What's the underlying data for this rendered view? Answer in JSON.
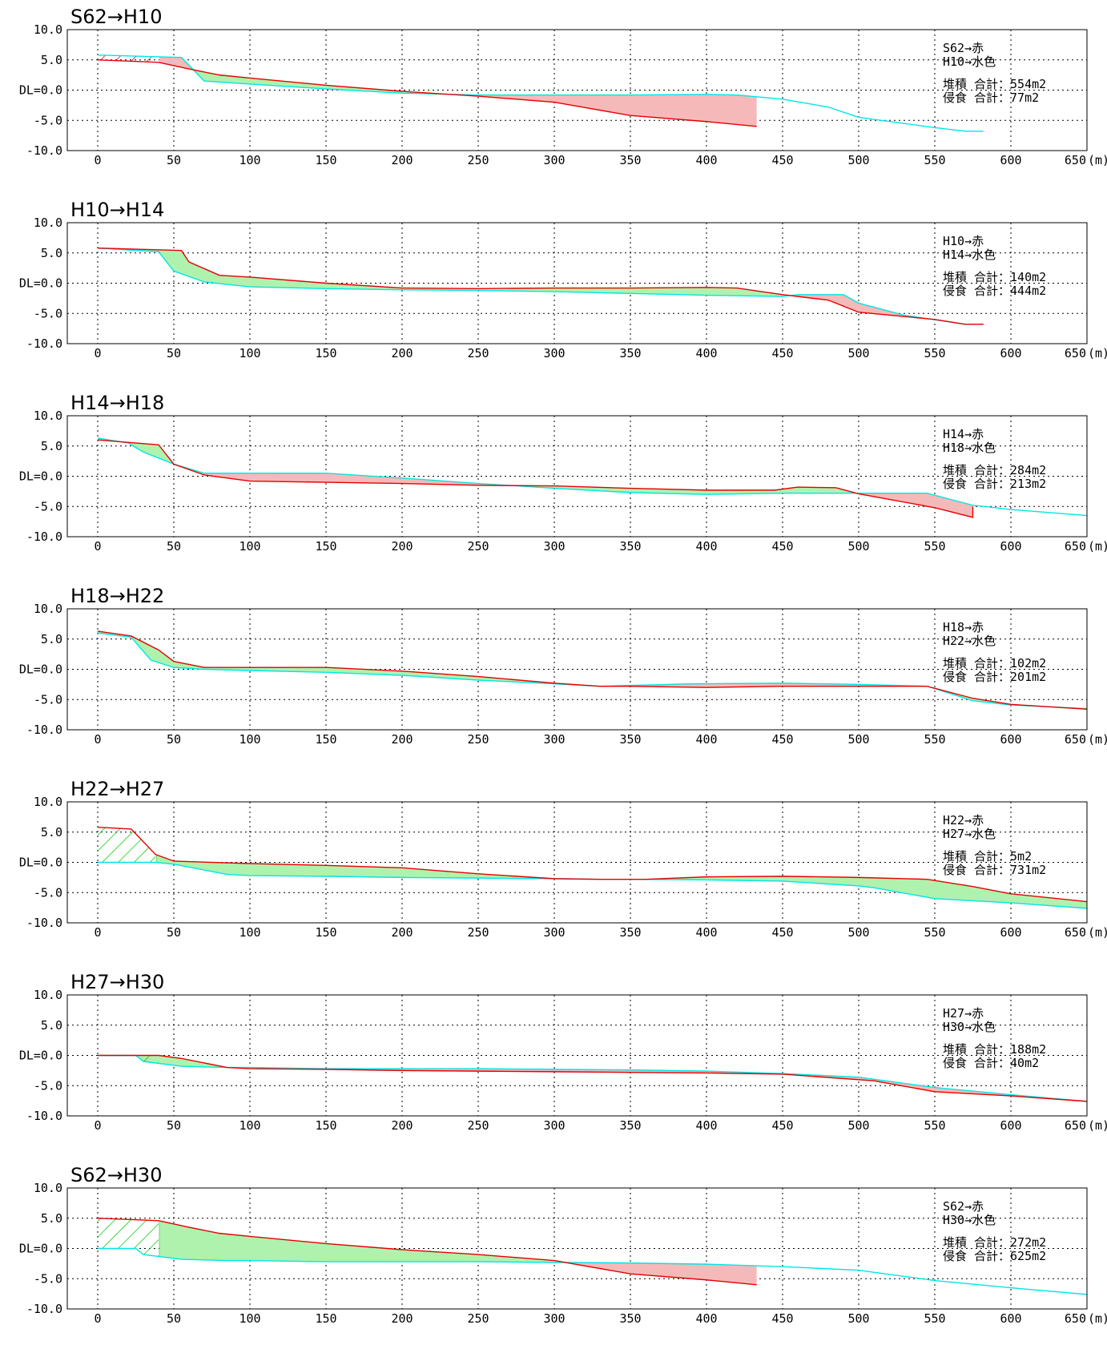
{
  "colors": {
    "old_line": "#e60000",
    "new_line": "#00e6e6",
    "deposition_fill": "#aef2ae",
    "erosion_fill": "#f6b9b9",
    "hatch": "#00cc00",
    "hatch_red": "#e60000",
    "deposition_edge": "#4caf50"
  },
  "axis_labels": {
    "x_unit": "(m)",
    "y_ticks": [
      "10.0",
      "5.0",
      "DL=0.0",
      "-5.0",
      "-10.0"
    ],
    "x_ticks": [
      "0",
      "50",
      "100",
      "150",
      "200",
      "250",
      "300",
      "350",
      "400",
      "450",
      "500",
      "550",
      "600",
      "650"
    ]
  },
  "chart_data": [
    {
      "type": "area",
      "title": "S62→H10",
      "xlim": [
        -20,
        650
      ],
      "ylim": [
        -10,
        10
      ],
      "grid": true,
      "legend_position": "top-right",
      "legend": [
        "S62→赤",
        "H10→水色"
      ],
      "deposition_label": "堆積 合計：554m2",
      "erosion_label": "侵食 合計：77m2",
      "hatch_red": [
        0,
        40
      ],
      "series": [
        {
          "name": "S62",
          "color": "red",
          "x": [
            0,
            40,
            60,
            80,
            100,
            150,
            200,
            250,
            300,
            350,
            400,
            433,
            433
          ],
          "y": [
            5.0,
            4.6,
            3.5,
            2.5,
            2.0,
            0.8,
            -0.2,
            -1.0,
            -2.0,
            -4.2,
            -5.2,
            -6.0,
            -6.0
          ]
        },
        {
          "name": "H10",
          "color": "cyan",
          "x": [
            0,
            40,
            55,
            70,
            100,
            150,
            200,
            250,
            300,
            350,
            400,
            420,
            450,
            480,
            500,
            550,
            570,
            582
          ],
          "y": [
            5.8,
            5.5,
            5.4,
            1.5,
            1.0,
            0.2,
            -0.5,
            -0.8,
            -0.8,
            -0.8,
            -0.7,
            -0.8,
            -1.5,
            -2.8,
            -4.5,
            -6.2,
            -6.8,
            -6.8
          ]
        }
      ]
    },
    {
      "type": "area",
      "title": "H10→H14",
      "xlim": [
        -20,
        650
      ],
      "ylim": [
        -10,
        10
      ],
      "grid": true,
      "legend_position": "top-right",
      "legend": [
        "H10→赤",
        "H14→水色"
      ],
      "deposition_label": "堆積 合計：140m2",
      "erosion_label": "侵食 合計：444m2",
      "series": [
        {
          "name": "H10",
          "color": "red",
          "x": [
            0,
            55,
            60,
            80,
            100,
            150,
            200,
            250,
            300,
            350,
            400,
            420,
            450,
            480,
            500,
            550,
            570,
            582
          ],
          "y": [
            5.8,
            5.4,
            3.5,
            1.3,
            1.0,
            0.0,
            -0.8,
            -0.9,
            -0.8,
            -0.8,
            -0.7,
            -0.8,
            -1.9,
            -2.8,
            -4.8,
            -6.0,
            -6.8,
            -6.8
          ]
        },
        {
          "name": "H14",
          "color": "cyan",
          "x": [
            0,
            40,
            50,
            70,
            100,
            150,
            200,
            250,
            300,
            350,
            400,
            450,
            460,
            490,
            500,
            530,
            570,
            582
          ],
          "y": [
            5.8,
            5.2,
            2.0,
            0.2,
            -0.6,
            -0.9,
            -1.1,
            -1.2,
            -1.4,
            -1.7,
            -2.0,
            -2.2,
            -1.9,
            -1.9,
            -3.3,
            -5.3,
            -6.8,
            -6.8
          ]
        }
      ]
    },
    {
      "type": "area",
      "title": "H14→H18",
      "xlim": [
        -20,
        650
      ],
      "ylim": [
        -10,
        10
      ],
      "grid": true,
      "legend_position": "top-right",
      "legend": [
        "H14→赤",
        "H18→水色"
      ],
      "deposition_label": "堆積 合計：284m2",
      "erosion_label": "侵食 合計：213m2",
      "series": [
        {
          "name": "H14",
          "color": "red",
          "x": [
            0,
            40,
            50,
            70,
            100,
            150,
            200,
            250,
            300,
            350,
            400,
            445,
            460,
            485,
            500,
            550,
            575,
            575
          ],
          "y": [
            6.0,
            5.2,
            2.0,
            0.2,
            -0.8,
            -1.0,
            -1.2,
            -1.5,
            -1.6,
            -2.0,
            -2.3,
            -2.3,
            -1.8,
            -1.9,
            -2.9,
            -5.2,
            -6.8,
            -5.0
          ]
        },
        {
          "name": "H18",
          "color": "cyan",
          "x": [
            0,
            20,
            30,
            50,
            70,
            100,
            150,
            200,
            250,
            300,
            350,
            400,
            450,
            500,
            545,
            575,
            600,
            650
          ],
          "y": [
            6.3,
            5.5,
            4.0,
            2.0,
            0.5,
            0.5,
            0.5,
            -0.3,
            -1.2,
            -2.0,
            -2.7,
            -3.0,
            -2.8,
            -2.8,
            -2.8,
            -4.8,
            -5.5,
            -6.5
          ]
        }
      ]
    },
    {
      "type": "area",
      "title": "H18→H22",
      "xlim": [
        -20,
        650
      ],
      "ylim": [
        -10,
        10
      ],
      "grid": true,
      "legend_position": "top-right",
      "legend": [
        "H18→赤",
        "H22→水色"
      ],
      "deposition_label": "堆積 合計：102m2",
      "erosion_label": "侵食 合計：201m2",
      "series": [
        {
          "name": "H18",
          "color": "red",
          "x": [
            0,
            22,
            40,
            50,
            70,
            100,
            150,
            200,
            250,
            300,
            330,
            350,
            400,
            450,
            500,
            545,
            575,
            600,
            650
          ],
          "y": [
            6.3,
            5.5,
            3.2,
            1.3,
            0.3,
            0.3,
            0.3,
            -0.3,
            -1.2,
            -2.3,
            -2.8,
            -2.8,
            -3.0,
            -2.8,
            -2.8,
            -2.8,
            -4.8,
            -5.8,
            -6.6
          ]
        },
        {
          "name": "H22",
          "color": "cyan",
          "x": [
            0,
            22,
            35,
            50,
            70,
            100,
            150,
            200,
            250,
            300,
            330,
            390,
            450,
            500,
            545,
            575,
            600,
            650
          ],
          "y": [
            6.0,
            5.3,
            1.5,
            0.3,
            0.0,
            -0.2,
            -0.5,
            -1.0,
            -1.8,
            -2.4,
            -2.8,
            -2.4,
            -2.3,
            -2.5,
            -2.8,
            -5.2,
            -5.9,
            -6.5
          ]
        }
      ]
    },
    {
      "type": "area",
      "title": "H22→H27",
      "xlim": [
        -20,
        650
      ],
      "ylim": [
        -10,
        10
      ],
      "grid": true,
      "legend_position": "top-right",
      "legend": [
        "H22→赤",
        "H27→水色"
      ],
      "deposition_label": "堆積 合計：5m2",
      "erosion_label": "侵食 合計：731m2",
      "hatch_green": [
        0,
        38
      ],
      "series": [
        {
          "name": "H22",
          "color": "red",
          "x": [
            0,
            22,
            38,
            50,
            100,
            150,
            200,
            250,
            300,
            330,
            360,
            400,
            450,
            500,
            545,
            575,
            600,
            650
          ],
          "y": [
            5.8,
            5.5,
            1.3,
            0.2,
            -0.2,
            -0.5,
            -0.9,
            -1.9,
            -2.7,
            -2.8,
            -2.8,
            -2.4,
            -2.3,
            -2.5,
            -2.8,
            -4.0,
            -5.2,
            -6.5
          ]
        },
        {
          "name": "H27",
          "color": "cyan",
          "x": [
            0,
            38,
            50,
            85,
            100,
            150,
            200,
            250,
            300,
            330,
            350,
            400,
            450,
            500,
            510,
            550,
            600,
            650
          ],
          "y": [
            0.0,
            0.0,
            -0.3,
            -2.0,
            -2.2,
            -2.3,
            -2.5,
            -2.6,
            -2.7,
            -2.8,
            -2.8,
            -2.9,
            -3.1,
            -3.9,
            -4.2,
            -6.0,
            -6.7,
            -7.6
          ]
        }
      ]
    },
    {
      "type": "area",
      "title": "H27→H30",
      "xlim": [
        -20,
        650
      ],
      "ylim": [
        -10,
        10
      ],
      "grid": true,
      "legend_position": "top-right",
      "legend": [
        "H27→赤",
        "H30→水色"
      ],
      "deposition_label": "堆積 合計：188m2",
      "erosion_label": "侵食 合計：40m2",
      "hatch_green": [
        30,
        40
      ],
      "series": [
        {
          "name": "H27",
          "color": "red",
          "x": [
            0,
            40,
            55,
            85,
            100,
            150,
            200,
            250,
            300,
            350,
            400,
            450,
            510,
            550,
            600,
            650
          ],
          "y": [
            0.0,
            0.0,
            -0.5,
            -2.0,
            -2.2,
            -2.3,
            -2.5,
            -2.6,
            -2.7,
            -2.8,
            -2.9,
            -3.1,
            -4.2,
            -6.0,
            -6.7,
            -7.6
          ]
        },
        {
          "name": "H30",
          "color": "cyan",
          "x": [
            0,
            25,
            30,
            55,
            85,
            100,
            150,
            200,
            250,
            300,
            350,
            400,
            450,
            500,
            550,
            600,
            650
          ],
          "y": [
            0.0,
            0.0,
            -1.0,
            -1.8,
            -2.0,
            -2.0,
            -2.2,
            -2.2,
            -2.2,
            -2.3,
            -2.4,
            -2.6,
            -3.0,
            -3.6,
            -5.3,
            -6.5,
            -7.6
          ]
        }
      ]
    },
    {
      "type": "area",
      "title": "S62→H30",
      "xlim": [
        -20,
        650
      ],
      "ylim": [
        -10,
        10
      ],
      "grid": true,
      "legend_position": "top-right",
      "legend": [
        "S62→赤",
        "H30→水色"
      ],
      "deposition_label": "堆積 合計：272m2",
      "erosion_label": "侵食 合計：625m2",
      "hatch_green": [
        0,
        40
      ],
      "series": [
        {
          "name": "S62",
          "color": "red",
          "x": [
            0,
            40,
            60,
            80,
            100,
            150,
            200,
            250,
            300,
            350,
            400,
            433,
            433
          ],
          "y": [
            5.0,
            4.6,
            3.5,
            2.5,
            2.0,
            0.8,
            -0.2,
            -1.0,
            -2.0,
            -4.2,
            -5.2,
            -6.0,
            -6.0
          ]
        },
        {
          "name": "H30",
          "color": "cyan",
          "x": [
            0,
            25,
            30,
            55,
            85,
            100,
            150,
            200,
            250,
            300,
            350,
            400,
            450,
            500,
            550,
            600,
            650
          ],
          "y": [
            0.0,
            0.0,
            -1.0,
            -1.8,
            -2.0,
            -2.0,
            -2.2,
            -2.2,
            -2.2,
            -2.3,
            -2.4,
            -2.6,
            -3.0,
            -3.6,
            -5.3,
            -6.5,
            -7.6
          ]
        }
      ]
    }
  ]
}
